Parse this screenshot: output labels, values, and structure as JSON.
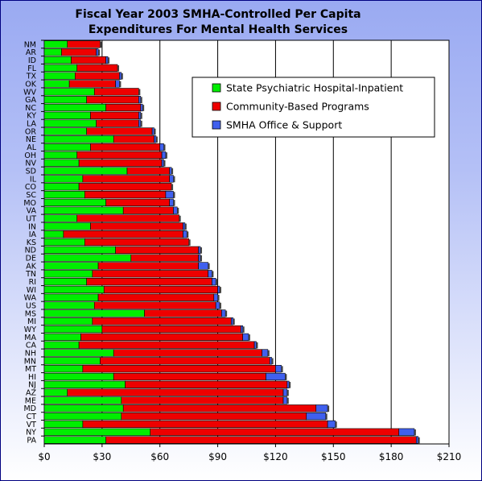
{
  "chart_data": {
    "type": "bar",
    "orientation": "horizontal",
    "stacked": true,
    "title_lines": [
      "Fiscal Year 2003 SMHA-Controlled Per Capita",
      "Expenditures For Mental Health Services"
    ],
    "xlim": [
      0,
      210
    ],
    "x_ticks": [
      "$0",
      "$30",
      "$60",
      "$90",
      "$120",
      "$150",
      "$180",
      "$210"
    ],
    "grid": true,
    "legend_position": "upper-right",
    "categories": [
      "NM",
      "AR",
      "ID",
      "FL",
      "TX",
      "OK",
      "WV",
      "GA",
      "NC",
      "KY",
      "LA",
      "OR",
      "NE",
      "AL",
      "OH",
      "NV",
      "SD",
      "IL",
      "CO",
      "SC",
      "MO",
      "VA",
      "UT",
      "IN",
      "IA",
      "KS",
      "ND",
      "DE",
      "AK",
      "TN",
      "RI",
      "WI",
      "WA",
      "US",
      "MS",
      "MI",
      "WY",
      "MA",
      "CA",
      "NH",
      "MN",
      "MT",
      "HI",
      "NJ",
      "AZ",
      "ME",
      "MD",
      "CT",
      "VT",
      "NY",
      "PA"
    ],
    "series": [
      {
        "name": "State Psychiatric Hospital-Inpatient",
        "color": "#00ee00",
        "values": [
          12,
          9,
          14,
          17,
          16,
          13,
          26,
          22,
          32,
          24,
          27,
          22,
          36,
          24,
          17,
          18,
          43,
          20,
          18,
          21,
          32,
          41,
          17,
          24,
          10,
          21,
          37,
          45,
          28,
          25,
          22,
          31,
          28,
          26,
          52,
          25,
          30,
          19,
          18,
          36,
          29,
          20,
          36,
          42,
          12,
          40,
          41,
          40,
          20,
          55,
          32
        ]
      },
      {
        "name": "Community-Based Programs",
        "color": "#ee0000",
        "values": [
          17,
          18,
          18,
          21,
          23,
          24,
          23,
          27,
          18,
          25,
          22,
          34,
          21,
          36,
          44,
          43,
          22,
          45,
          48,
          42,
          33,
          26,
          53,
          48,
          62,
          54,
          43,
          35,
          52,
          60,
          65,
          59,
          60,
          63,
          40,
          72,
          72,
          84,
          91,
          77,
          88,
          100,
          79,
          84,
          112,
          84,
          100,
          96,
          127,
          129,
          161
        ]
      },
      {
        "name": "SMHA Office & Support",
        "color": "#4060ee",
        "values": [
          0,
          1,
          1,
          0,
          1,
          2,
          0,
          1,
          1,
          1,
          1,
          1,
          1,
          2,
          2,
          1,
          1,
          2,
          0,
          4,
          2,
          2,
          0,
          1,
          2,
          0,
          1,
          1,
          5,
          2,
          2,
          1,
          2,
          2,
          2,
          1,
          1,
          3,
          1,
          3,
          1,
          3,
          10,
          1,
          2,
          2,
          6,
          10,
          4,
          8,
          1
        ]
      }
    ]
  }
}
